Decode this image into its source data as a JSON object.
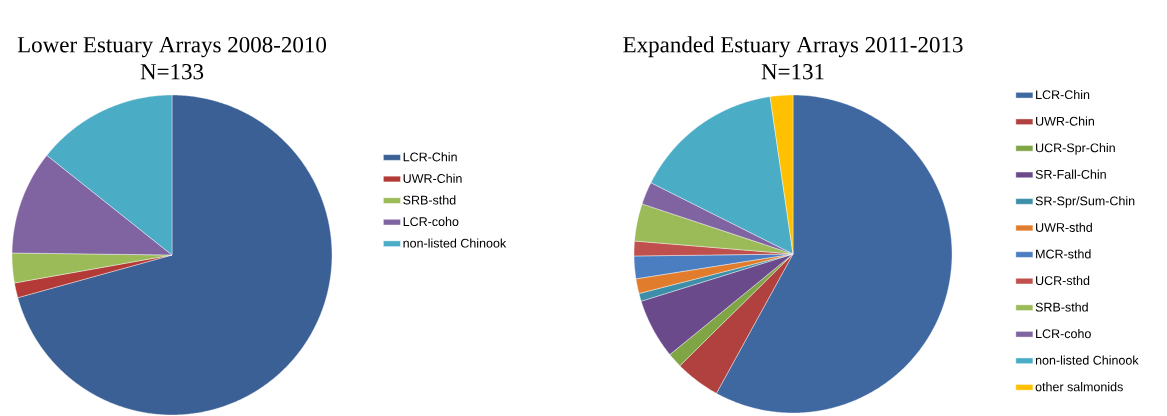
{
  "chart_data": [
    {
      "type": "pie",
      "title": "Lower Estuary Arrays 2008-2010",
      "subtitle": "N=133",
      "categories": [
        "LCR-Chin",
        "UWR-Chin",
        "SRB-sthd",
        "LCR-coho",
        "non-listed Chinook"
      ],
      "values": [
        70.7,
        1.5,
        3.0,
        10.5,
        14.3
      ],
      "colors": [
        "#3a6095",
        "#b33a36",
        "#9bbb59",
        "#8064a2",
        "#4bacc6"
      ],
      "legend": "right"
    },
    {
      "type": "pie",
      "title": "Expanded Estuary Arrays 2011-2013",
      "subtitle": "N=131",
      "categories": [
        "LCR-Chin",
        "UWR-Chin",
        "UCR-Spr-Chin",
        "SR-Fall-Chin",
        "SR-Spr/Sum-Chin",
        "UWR-sthd",
        "MCR-sthd",
        "UCR-sthd",
        "SRB-sthd",
        "LCR-coho",
        "non-listed Chinook",
        "other salmonids"
      ],
      "values": [
        58.0,
        4.6,
        1.5,
        6.1,
        0.8,
        1.5,
        2.3,
        1.5,
        3.8,
        2.3,
        15.3,
        2.3
      ],
      "colors": [
        "#3f67a0",
        "#b0413e",
        "#7fa545",
        "#6b4a8c",
        "#3d8ea8",
        "#e07c2c",
        "#4a7ec0",
        "#c0504d",
        "#9bbb59",
        "#8064a2",
        "#4bacc6",
        "#ffc000"
      ],
      "legend": "right"
    }
  ]
}
